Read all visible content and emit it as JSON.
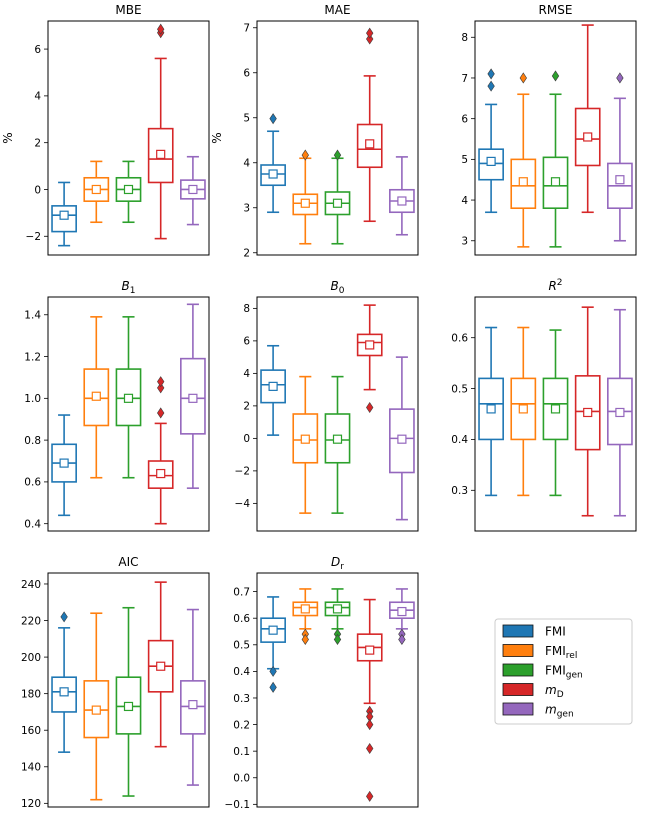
{
  "figure": {
    "colors": {
      "FMI": "#1f77b4",
      "FMI_rel": "#ff7f0e",
      "FMI_gen": "#2ca02c",
      "mD": "#d62728",
      "m_gen": "#9467bd"
    },
    "legend": {
      "entries": [
        {
          "key": "FMI",
          "base": "FMI",
          "sub": ""
        },
        {
          "key": "FMI_rel",
          "base": "FMI",
          "sub": "rel"
        },
        {
          "key": "FMI_gen",
          "base": "FMI",
          "sub": "gen"
        },
        {
          "key": "mD",
          "base": "m",
          "sub": "D"
        },
        {
          "key": "m_gen",
          "base": "m",
          "sub": "gen"
        }
      ]
    }
  },
  "chart_data": [
    {
      "type": "box",
      "title": "MBE",
      "title_sub": "",
      "title_sup": "",
      "title_italic": false,
      "ylabel": "%",
      "ylim": [
        -2.8,
        7.2
      ],
      "yticks": [
        -2,
        0,
        2,
        4,
        6
      ],
      "boxes": [
        {
          "series": "FMI",
          "whislo": -2.4,
          "q1": -1.8,
          "med": -1.1,
          "q3": -0.7,
          "whishi": 0.3,
          "mean": -1.1,
          "fliers": []
        },
        {
          "series": "FMI_rel",
          "whislo": -1.4,
          "q1": -0.5,
          "med": 0.0,
          "q3": 0.5,
          "whishi": 1.2,
          "mean": 0.0,
          "fliers": []
        },
        {
          "series": "FMI_gen",
          "whislo": -1.4,
          "q1": -0.5,
          "med": 0.0,
          "q3": 0.5,
          "whishi": 1.2,
          "mean": 0.0,
          "fliers": []
        },
        {
          "series": "mD",
          "whislo": -2.1,
          "q1": 0.3,
          "med": 1.3,
          "q3": 2.6,
          "whishi": 5.6,
          "mean": 1.5,
          "fliers": [
            6.7,
            6.85
          ]
        },
        {
          "series": "m_gen",
          "whislo": -1.5,
          "q1": -0.4,
          "med": 0.0,
          "q3": 0.4,
          "whishi": 1.4,
          "mean": 0.0,
          "fliers": []
        }
      ]
    },
    {
      "type": "box",
      "title": "MAE",
      "title_sub": "",
      "title_sup": "",
      "title_italic": false,
      "ylabel": "%",
      "ylim": [
        1.95,
        7.15
      ],
      "yticks": [
        2,
        3,
        4,
        5,
        6,
        7
      ],
      "boxes": [
        {
          "series": "FMI",
          "whislo": 2.9,
          "q1": 3.5,
          "med": 3.75,
          "q3": 3.95,
          "whishi": 4.7,
          "mean": 3.75,
          "fliers": [
            4.98
          ]
        },
        {
          "series": "FMI_rel",
          "whislo": 2.2,
          "q1": 2.85,
          "med": 3.1,
          "q3": 3.3,
          "whishi": 4.1,
          "mean": 3.1,
          "fliers": [
            4.17
          ]
        },
        {
          "series": "FMI_gen",
          "whislo": 2.2,
          "q1": 2.85,
          "med": 3.1,
          "q3": 3.35,
          "whishi": 4.1,
          "mean": 3.1,
          "fliers": [
            4.17
          ]
        },
        {
          "series": "mD",
          "whislo": 2.7,
          "q1": 3.9,
          "med": 4.3,
          "q3": 4.85,
          "whishi": 5.93,
          "mean": 4.42,
          "fliers": [
            6.75,
            6.88
          ]
        },
        {
          "series": "m_gen",
          "whislo": 2.4,
          "q1": 2.9,
          "med": 3.15,
          "q3": 3.4,
          "whishi": 4.13,
          "mean": 3.15,
          "fliers": []
        }
      ]
    },
    {
      "type": "box",
      "title": "RMSE",
      "title_sub": "",
      "title_sup": "",
      "title_italic": false,
      "ylabel": "",
      "ylim": [
        2.65,
        8.4
      ],
      "yticks": [
        3,
        4,
        5,
        6,
        7,
        8
      ],
      "boxes": [
        {
          "series": "FMI",
          "whislo": 3.7,
          "q1": 4.5,
          "med": 4.9,
          "q3": 5.25,
          "whishi": 6.35,
          "mean": 4.95,
          "fliers": [
            6.8,
            7.1
          ]
        },
        {
          "series": "FMI_rel",
          "whislo": 2.85,
          "q1": 3.8,
          "med": 4.35,
          "q3": 5.0,
          "whishi": 6.6,
          "mean": 4.45,
          "fliers": [
            7.0
          ]
        },
        {
          "series": "FMI_gen",
          "whislo": 2.85,
          "q1": 3.8,
          "med": 4.35,
          "q3": 5.05,
          "whishi": 6.6,
          "mean": 4.45,
          "fliers": [
            7.05
          ]
        },
        {
          "series": "mD",
          "whislo": 3.7,
          "q1": 4.85,
          "med": 5.5,
          "q3": 6.25,
          "whishi": 8.3,
          "mean": 5.55,
          "fliers": []
        },
        {
          "series": "m_gen",
          "whislo": 3.0,
          "q1": 3.8,
          "med": 4.35,
          "q3": 4.9,
          "whishi": 6.5,
          "mean": 4.5,
          "fliers": [
            7.0
          ]
        }
      ]
    },
    {
      "type": "box",
      "title": "B",
      "title_sub": "1",
      "title_sup": "",
      "title_italic": true,
      "ylabel": "",
      "ylim": [
        0.365,
        1.485
      ],
      "yticks": [
        0.4,
        0.6,
        0.8,
        1.0,
        1.2,
        1.4
      ],
      "boxes": [
        {
          "series": "FMI",
          "whislo": 0.44,
          "q1": 0.6,
          "med": 0.69,
          "q3": 0.78,
          "whishi": 0.92,
          "mean": 0.69,
          "fliers": []
        },
        {
          "series": "FMI_rel",
          "whislo": 0.62,
          "q1": 0.87,
          "med": 1.0,
          "q3": 1.14,
          "whishi": 1.39,
          "mean": 1.01,
          "fliers": []
        },
        {
          "series": "FMI_gen",
          "whislo": 0.62,
          "q1": 0.87,
          "med": 1.0,
          "q3": 1.14,
          "whishi": 1.39,
          "mean": 1.0,
          "fliers": []
        },
        {
          "series": "mD",
          "whislo": 0.4,
          "q1": 0.57,
          "med": 0.63,
          "q3": 0.7,
          "whishi": 0.88,
          "mean": 0.64,
          "fliers": [
            0.93,
            1.05,
            1.08
          ]
        },
        {
          "series": "m_gen",
          "whislo": 0.57,
          "q1": 0.83,
          "med": 1.0,
          "q3": 1.19,
          "whishi": 1.45,
          "mean": 1.0,
          "fliers": []
        }
      ]
    },
    {
      "type": "box",
      "title": "B",
      "title_sub": "0",
      "title_sup": "",
      "title_italic": true,
      "ylabel": "",
      "ylim": [
        -5.7,
        8.7
      ],
      "yticks": [
        -4,
        -2,
        0,
        2,
        4,
        6,
        8
      ],
      "boxes": [
        {
          "series": "FMI",
          "whislo": 0.2,
          "q1": 2.2,
          "med": 3.3,
          "q3": 4.2,
          "whishi": 5.7,
          "mean": 3.2,
          "fliers": []
        },
        {
          "series": "FMI_rel",
          "whislo": -4.6,
          "q1": -1.5,
          "med": -0.1,
          "q3": 1.5,
          "whishi": 3.8,
          "mean": -0.05,
          "fliers": []
        },
        {
          "series": "FMI_gen",
          "whislo": -4.6,
          "q1": -1.5,
          "med": -0.1,
          "q3": 1.5,
          "whishi": 3.8,
          "mean": -0.05,
          "fliers": []
        },
        {
          "series": "mD",
          "whislo": 3.0,
          "q1": 5.1,
          "med": 5.9,
          "q3": 6.4,
          "whishi": 8.2,
          "mean": 5.75,
          "fliers": [
            1.9
          ]
        },
        {
          "series": "m_gen",
          "whislo": -5.0,
          "q1": -2.1,
          "med": 0.0,
          "q3": 1.8,
          "whishi": 5.0,
          "mean": -0.05,
          "fliers": []
        }
      ]
    },
    {
      "type": "box",
      "title": "R",
      "title_sub": "",
      "title_sup": "2",
      "title_italic": true,
      "ylabel": "",
      "ylim": [
        0.22,
        0.68
      ],
      "yticks": [
        0.3,
        0.4,
        0.5,
        0.6
      ],
      "boxes": [
        {
          "series": "FMI",
          "whislo": 0.29,
          "q1": 0.4,
          "med": 0.47,
          "q3": 0.52,
          "whishi": 0.62,
          "mean": 0.46,
          "fliers": []
        },
        {
          "series": "FMI_rel",
          "whislo": 0.29,
          "q1": 0.4,
          "med": 0.47,
          "q3": 0.52,
          "whishi": 0.62,
          "mean": 0.46,
          "fliers": []
        },
        {
          "series": "FMI_gen",
          "whislo": 0.29,
          "q1": 0.4,
          "med": 0.47,
          "q3": 0.52,
          "whishi": 0.615,
          "mean": 0.46,
          "fliers": []
        },
        {
          "series": "mD",
          "whislo": 0.25,
          "q1": 0.38,
          "med": 0.455,
          "q3": 0.525,
          "whishi": 0.66,
          "mean": 0.453,
          "fliers": []
        },
        {
          "series": "m_gen",
          "whislo": 0.25,
          "q1": 0.39,
          "med": 0.455,
          "q3": 0.52,
          "whishi": 0.655,
          "mean": 0.453,
          "fliers": []
        }
      ]
    },
    {
      "type": "box",
      "title": "AIC",
      "title_sub": "",
      "title_sup": "",
      "title_italic": false,
      "ylabel": "",
      "ylim": [
        118,
        246
      ],
      "yticks": [
        120,
        140,
        160,
        180,
        200,
        220,
        240
      ],
      "boxes": [
        {
          "series": "FMI",
          "whislo": 148,
          "q1": 170,
          "med": 181,
          "q3": 189,
          "whishi": 216,
          "mean": 181,
          "fliers": [
            222
          ]
        },
        {
          "series": "FMI_rel",
          "whislo": 122,
          "q1": 156,
          "med": 171,
          "q3": 187,
          "whishi": 224,
          "mean": 171,
          "fliers": []
        },
        {
          "series": "FMI_gen",
          "whislo": 124,
          "q1": 158,
          "med": 173,
          "q3": 189,
          "whishi": 227,
          "mean": 173,
          "fliers": []
        },
        {
          "series": "mD",
          "whislo": 151,
          "q1": 181,
          "med": 195,
          "q3": 209,
          "whishi": 241,
          "mean": 195,
          "fliers": []
        },
        {
          "series": "m_gen",
          "whislo": 130,
          "q1": 158,
          "med": 173,
          "q3": 187,
          "whishi": 226,
          "mean": 174,
          "fliers": []
        }
      ]
    },
    {
      "type": "box",
      "title": "D",
      "title_sub": "r",
      "title_sup": "",
      "title_italic": true,
      "ylabel": "",
      "ylim": [
        -0.11,
        0.77
      ],
      "yticks": [
        -0.1,
        0.0,
        0.1,
        0.2,
        0.3,
        0.4,
        0.5,
        0.6,
        0.7
      ],
      "boxes": [
        {
          "series": "FMI",
          "whislo": 0.41,
          "q1": 0.51,
          "med": 0.56,
          "q3": 0.6,
          "whishi": 0.68,
          "mean": 0.555,
          "fliers": [
            0.4,
            0.34
          ]
        },
        {
          "series": "FMI_rel",
          "whislo": 0.56,
          "q1": 0.61,
          "med": 0.64,
          "q3": 0.66,
          "whishi": 0.71,
          "mean": 0.635,
          "fliers": [
            0.54,
            0.52
          ]
        },
        {
          "series": "FMI_gen",
          "whislo": 0.56,
          "q1": 0.61,
          "med": 0.64,
          "q3": 0.66,
          "whishi": 0.71,
          "mean": 0.635,
          "fliers": [
            0.54,
            0.52
          ]
        },
        {
          "series": "mD",
          "whislo": 0.28,
          "q1": 0.44,
          "med": 0.49,
          "q3": 0.54,
          "whishi": 0.67,
          "mean": 0.48,
          "fliers": [
            0.25,
            0.23,
            0.2,
            0.11,
            -0.07
          ]
        },
        {
          "series": "m_gen",
          "whislo": 0.56,
          "q1": 0.6,
          "med": 0.63,
          "q3": 0.66,
          "whishi": 0.71,
          "mean": 0.625,
          "fliers": [
            0.54,
            0.52
          ]
        }
      ]
    }
  ]
}
